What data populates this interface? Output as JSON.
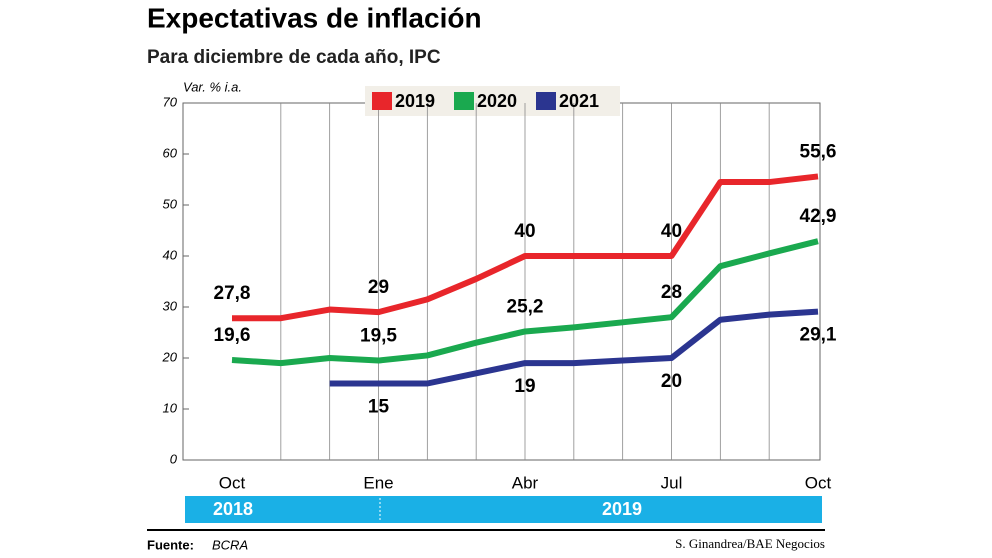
{
  "chart_data": {
    "type": "line",
    "title": "Expectativas de inflación",
    "subtitle": "Para diciembre de cada año, IPC",
    "y_label": "Var. % i.a.",
    "categories": [
      "Oct",
      null,
      null,
      "Ene",
      null,
      null,
      "Abr",
      null,
      null,
      "Jul",
      null,
      null,
      "Oct"
    ],
    "periods": [
      "2018",
      "2019"
    ],
    "ylim": [
      0,
      70
    ],
    "yticks": [
      0,
      10,
      20,
      30,
      40,
      50,
      60,
      70
    ],
    "series": [
      {
        "name": "2019",
        "color": "#e8262b",
        "values": [
          27.8,
          27.8,
          29.5,
          29,
          31.5,
          35.5,
          40,
          40,
          40,
          40,
          54.5,
          54.5,
          55.6
        ],
        "value_labels": [
          "27,8",
          null,
          null,
          "29",
          null,
          null,
          "40",
          null,
          null,
          "40",
          null,
          null,
          "55,6"
        ]
      },
      {
        "name": "2020",
        "color": "#1aa94f",
        "values": [
          19.6,
          19,
          20,
          19.5,
          20.5,
          23,
          25.2,
          26,
          27,
          28,
          38,
          40.5,
          42.9
        ],
        "value_labels": [
          "19,6",
          null,
          null,
          "19,5",
          null,
          null,
          "25,2",
          null,
          null,
          "28",
          null,
          null,
          "42,9"
        ]
      },
      {
        "name": "2021",
        "color": "#2b3590",
        "values": [
          null,
          null,
          15,
          15,
          15,
          17,
          19,
          19,
          19.5,
          20,
          27.5,
          28.5,
          29.1
        ],
        "value_labels": [
          null,
          null,
          null,
          "15",
          null,
          null,
          "19",
          null,
          null,
          "20",
          null,
          null,
          "29,1"
        ]
      }
    ],
    "source_label": "Fuente:",
    "source": "BCRA",
    "credit": "S. Ginandrea/BAE Negocios"
  }
}
